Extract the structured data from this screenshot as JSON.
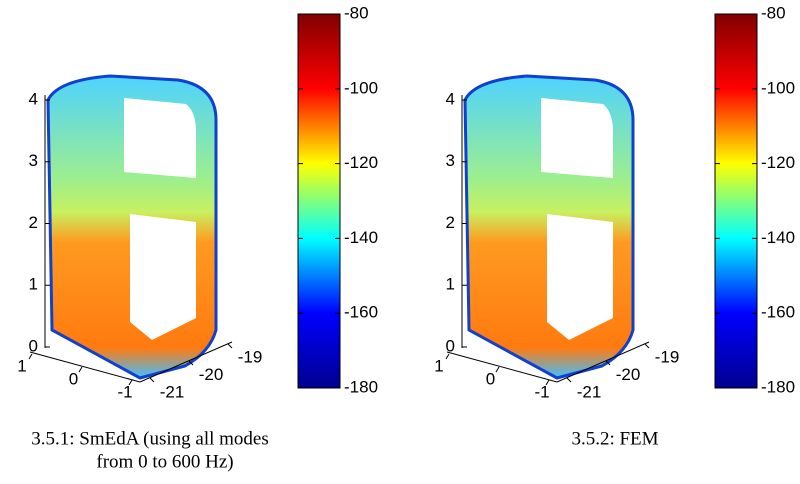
{
  "chart_data": [
    {
      "type": "surface3d",
      "zticks": [
        0,
        1,
        2,
        3,
        4
      ],
      "xticks": [
        1,
        0,
        -1
      ],
      "yticks": [
        -21,
        -20,
        -19
      ],
      "xlim": [
        1,
        -1
      ],
      "ylim": [
        -21,
        -19
      ],
      "zlim": [
        0,
        4
      ],
      "clim": [
        -180,
        -80
      ],
      "cticks": [
        -80,
        -100,
        -120,
        -140,
        -160,
        -180
      ],
      "colormap": [
        "#00008f",
        "#0000ff",
        "#00ffff",
        "#ffff00",
        "#ff0000",
        "#800000"
      ],
      "caption": [
        "3.5.1: SmEdA (using all modes",
        "from 0 to 600 Hz)"
      ]
    },
    {
      "type": "surface3d",
      "zticks": [
        0,
        1,
        2,
        3,
        4
      ],
      "xticks": [
        1,
        0,
        -1
      ],
      "yticks": [
        -21,
        -20,
        -19
      ],
      "xlim": [
        1,
        -1
      ],
      "ylim": [
        -21,
        -19
      ],
      "zlim": [
        0,
        4
      ],
      "clim": [
        -180,
        -80
      ],
      "cticks": [
        -80,
        -100,
        -120,
        -140,
        -160,
        -180
      ],
      "colormap": [
        "#00008f",
        "#0000ff",
        "#00ffff",
        "#ffff00",
        "#ff0000",
        "#800000"
      ],
      "caption": [
        "3.5.2: FEM"
      ]
    }
  ]
}
